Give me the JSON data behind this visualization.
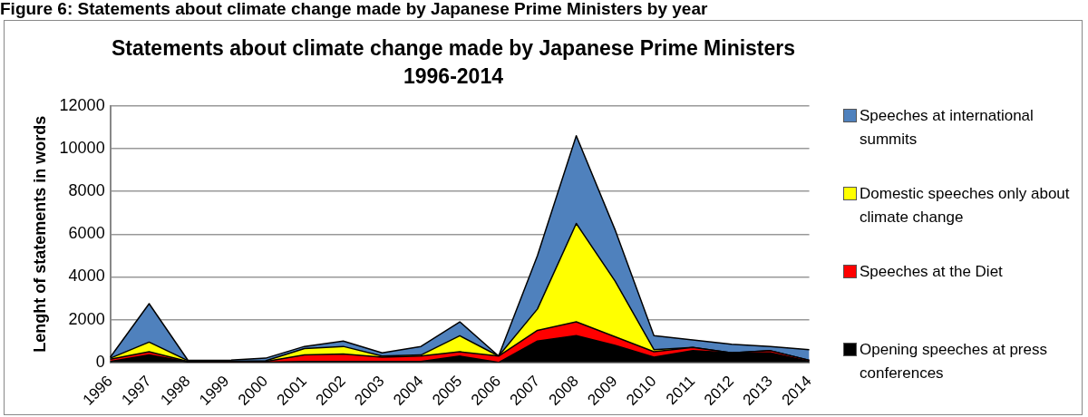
{
  "chart_data": {
    "type": "area",
    "title": "Statements about climate change made by Japanese Prime Ministers 1996-2014",
    "annotations": [
      "Figure 6: Statements about climate change made by Japanese Prime Ministers by year"
    ],
    "ylabel": "Lenght of statements in words",
    "categories": [
      "1996",
      "1997",
      "1998",
      "1999",
      "2000",
      "2001",
      "2002",
      "2003",
      "2004",
      "2005",
      "2006",
      "2007",
      "2008",
      "2009",
      "2010",
      "2011",
      "2012",
      "2013",
      "2014"
    ],
    "stacked": true,
    "ylim": [
      0,
      12000
    ],
    "yticks": [
      0,
      2000,
      4000,
      6000,
      8000,
      10000,
      12000
    ],
    "grid": "y",
    "legend": "right",
    "series": [
      {
        "name": "Opening speeches at press conferences",
        "color": "#000000",
        "values": [
          50,
          350,
          20,
          10,
          10,
          50,
          50,
          50,
          50,
          300,
          0,
          1000,
          1250,
          800,
          250,
          550,
          450,
          450,
          50
        ]
      },
      {
        "name": "Speeches at the Diet",
        "color": "#ff0000",
        "values": [
          100,
          150,
          30,
          40,
          40,
          300,
          350,
          200,
          250,
          200,
          300,
          500,
          650,
          400,
          250,
          150,
          0,
          100,
          50
        ]
      },
      {
        "name": "Domestic speeches only about climate change",
        "color": "#ffff00",
        "values": [
          50,
          450,
          30,
          10,
          30,
          300,
          350,
          50,
          50,
          750,
          0,
          1000,
          4600,
          2600,
          100,
          0,
          0,
          0,
          0
        ]
      },
      {
        "name": "Speeches at international summits",
        "color": "#4f81bd",
        "values": [
          50,
          1800,
          20,
          40,
          120,
          100,
          250,
          150,
          400,
          650,
          0,
          2500,
          4100,
          2400,
          650,
          350,
          400,
          200,
          500
        ]
      }
    ]
  }
}
